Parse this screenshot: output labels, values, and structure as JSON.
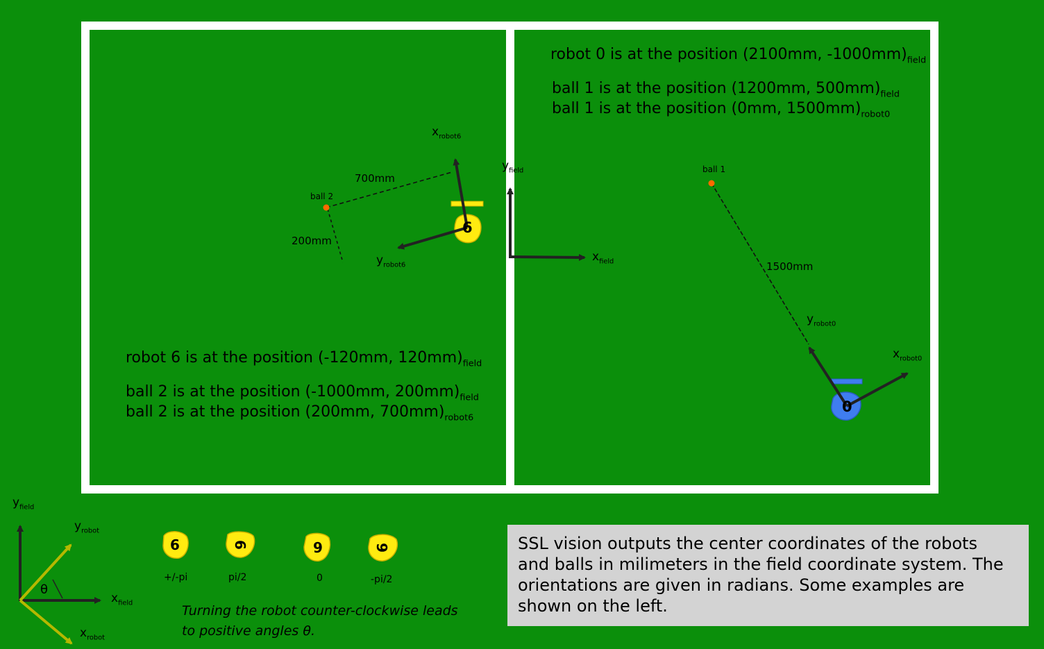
{
  "notes_right": {
    "robot0_position": {
      "text": "robot 0 is at the position (2100mm, -1000mm)",
      "frame": "field"
    },
    "ball1_field": {
      "text": "ball 1 is at the position (1200mm, 500mm)",
      "frame": "field"
    },
    "ball1_robot": {
      "text": "ball 1 is at the position (0mm, 1500mm)",
      "frame": "robot0"
    }
  },
  "notes_left": {
    "robot6_position": {
      "text": "robot 6 is at the position (-120mm, 120mm)",
      "frame": "field"
    },
    "ball2_field": {
      "text": "ball 2 is at the position (-1000mm, 200mm)",
      "frame": "field"
    },
    "ball2_robot": {
      "text": "ball 2 is at the position (200mm, 700mm)",
      "frame": "robot6"
    }
  },
  "labels": {
    "x_robot6": {
      "base": "x",
      "sub": "robot6"
    },
    "y_robot6": {
      "base": "y",
      "sub": "robot6"
    },
    "x_robot0": {
      "base": "x",
      "sub": "robot0"
    },
    "y_robot0": {
      "base": "y",
      "sub": "robot0"
    },
    "x_field": {
      "base": "x",
      "sub": "field"
    },
    "y_field": {
      "base": "y",
      "sub": "field"
    },
    "ball1": "ball 1",
    "ball2": "ball 2",
    "dist_700": "700mm",
    "dist_200": "200mm",
    "dist_1500": "1500mm",
    "robot6_number": "6",
    "robot0_number": "0"
  },
  "legend": {
    "y_field": {
      "base": "y",
      "sub": "field"
    },
    "x_field": {
      "base": "x",
      "sub": "field"
    },
    "y_robot": {
      "base": "y",
      "sub": "robot"
    },
    "x_robot": {
      "base": "x",
      "sub": "robot"
    },
    "theta": "θ",
    "orientations": [
      {
        "number": "6",
        "label": "+/-pi"
      },
      {
        "number": "6",
        "label": "pi/2"
      },
      {
        "number": "6",
        "label": "0"
      },
      {
        "number": "6",
        "label": "-pi/2"
      }
    ],
    "caption_line1": "Turning the robot counter-clockwise leads",
    "caption_line2": "to positive angles θ."
  },
  "info_box": {
    "line1": "SSL vision outputs the center coordinates of the robots",
    "line2": "and balls in milimeters in the field coordinate system. The",
    "line3": "orientations are given in radians. Some examples are",
    "line4": "shown on the left."
  },
  "colors": {
    "field_green": "#0b8f0b",
    "field_lines": "#ffffff",
    "yellow_team": "#ffeb10",
    "blue_team": "#3f7df0",
    "ball": "#ff6a00",
    "arrows": "#222222",
    "legend_robot_axes": "#b5b800",
    "info_box": "#d3d3d3"
  }
}
